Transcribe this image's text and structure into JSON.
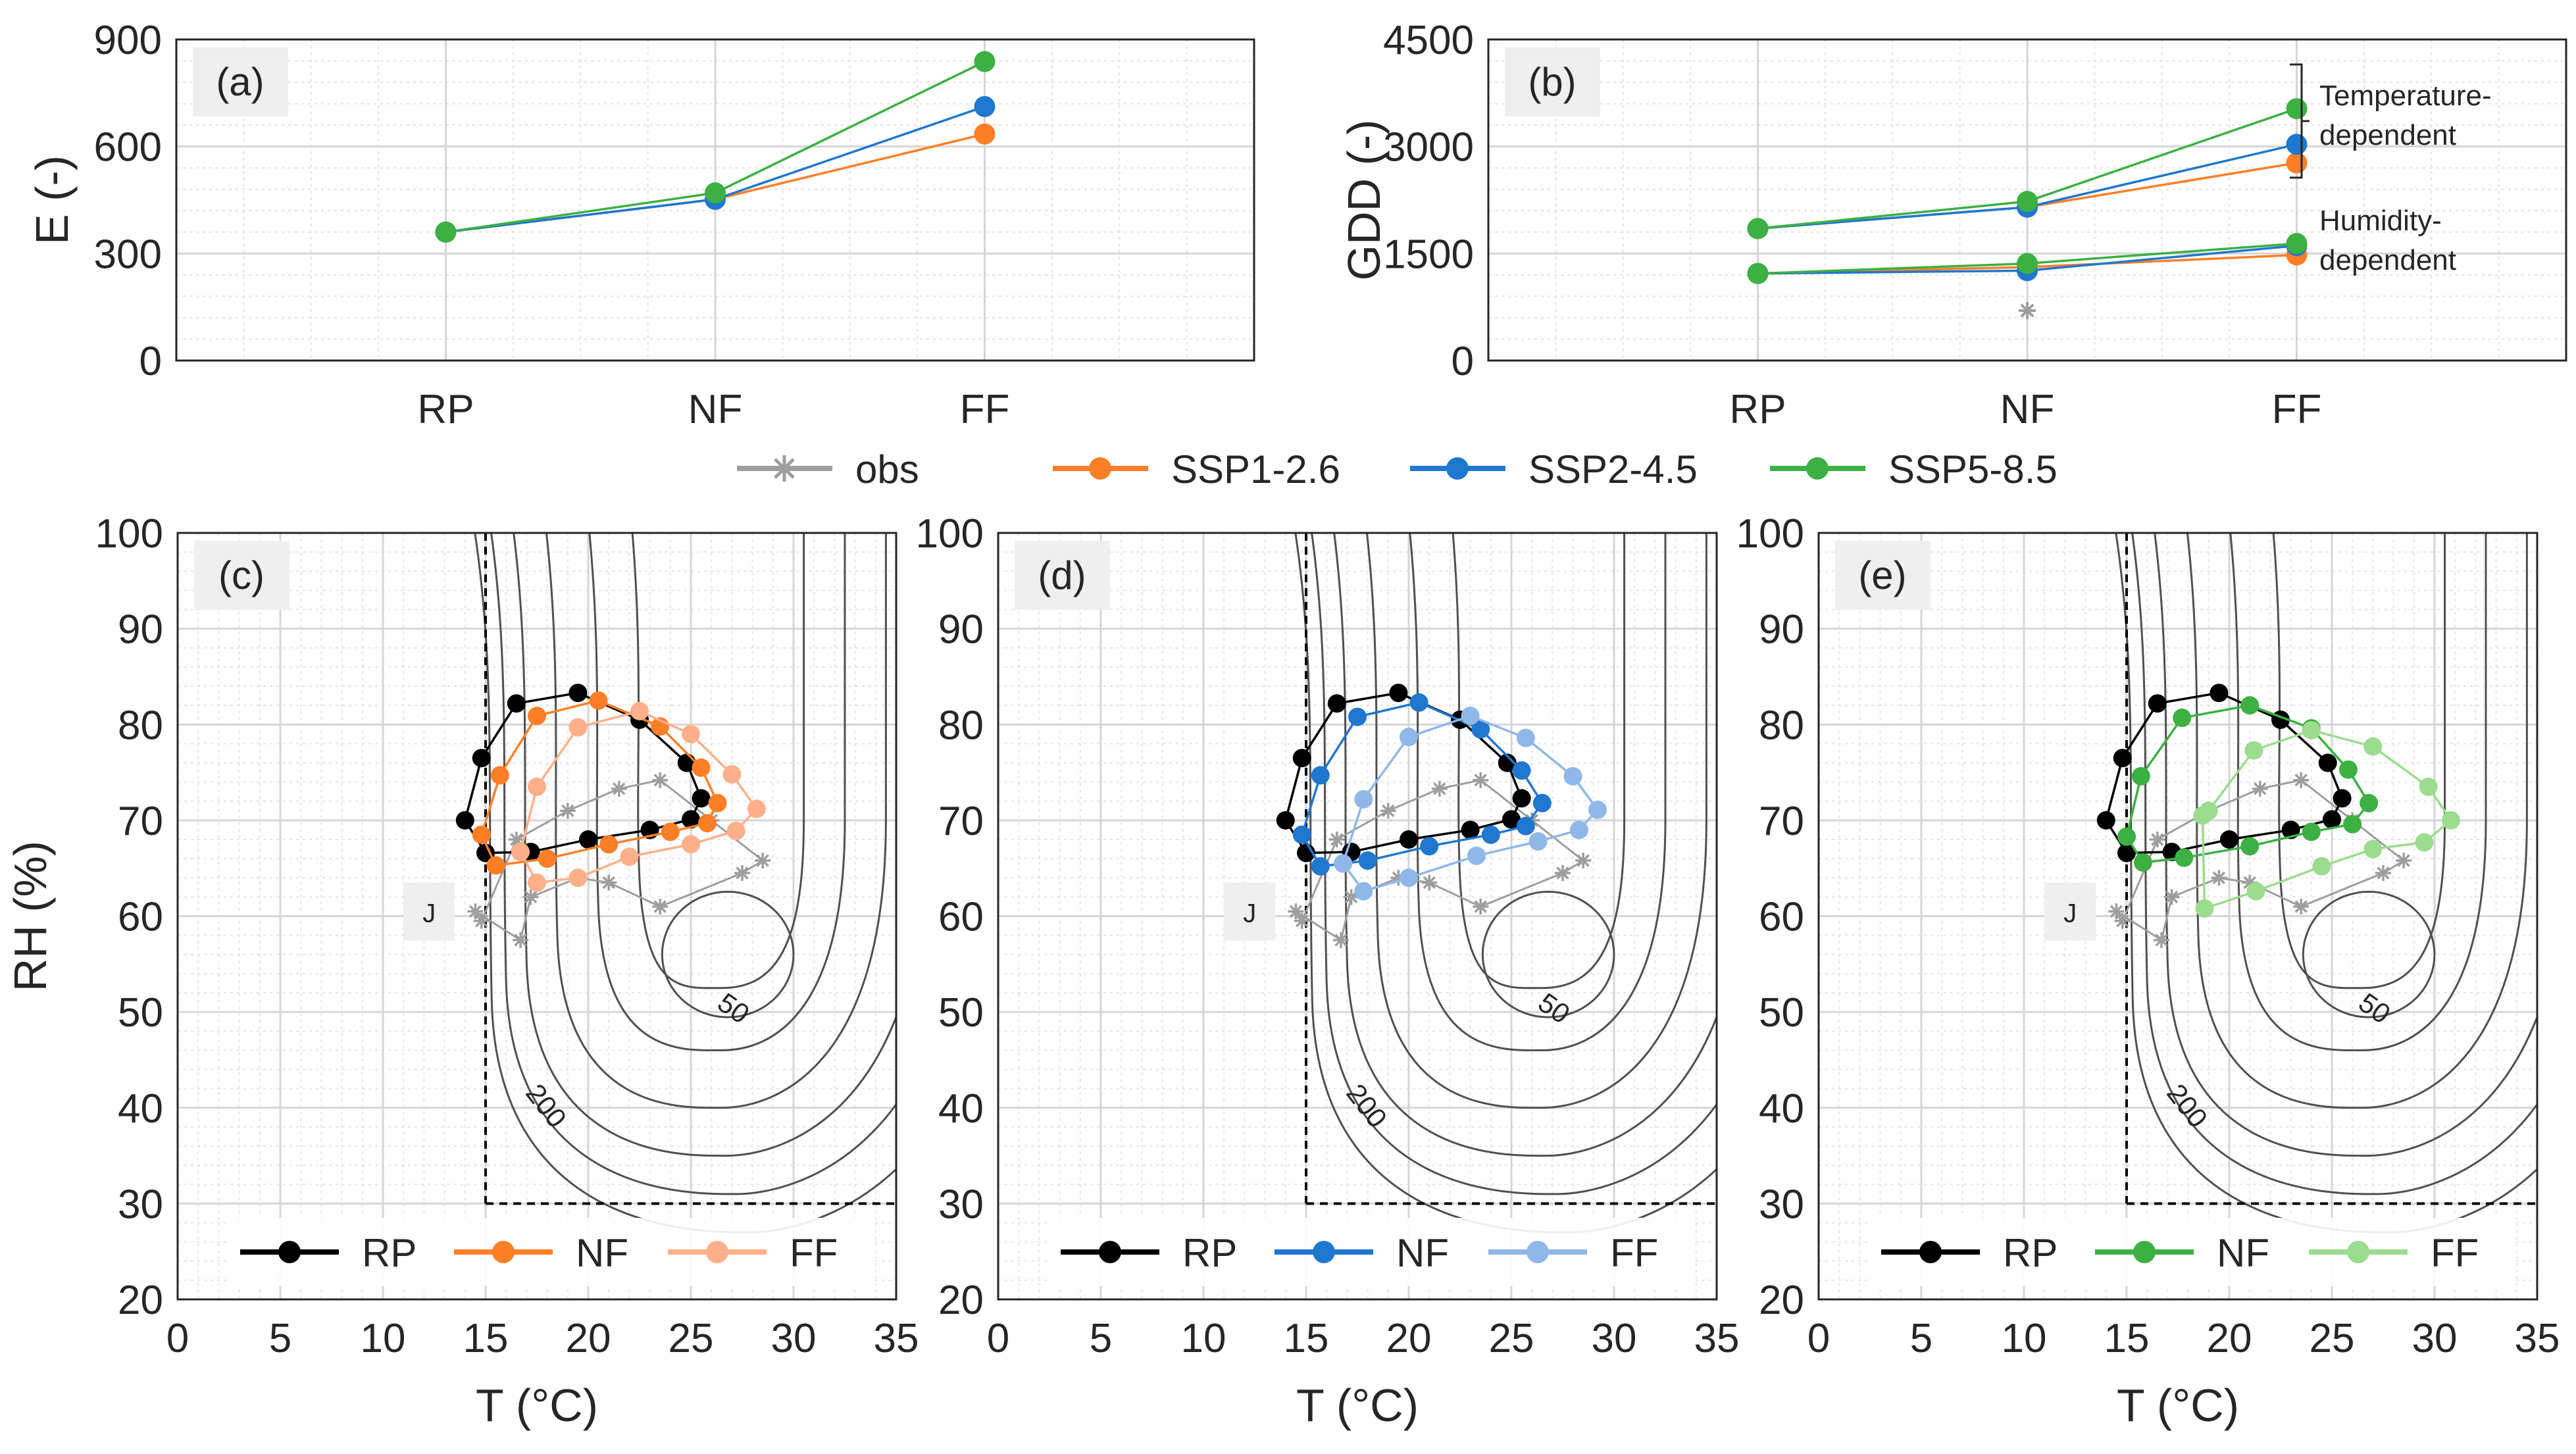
{
  "colors": {
    "obs": "#9e9e9e",
    "rp": "#000000",
    "ssp126": "#ff7f27",
    "ssp245": "#1f77d0",
    "ssp585": "#3cb043",
    "ssp126_light": "#ffb08a",
    "ssp245_light": "#8fb8e8",
    "ssp585_light": "#9bdc8f",
    "contour": "#505050",
    "grid": "#d6d6d6"
  },
  "top_legend": {
    "items": [
      {
        "label": "obs",
        "color_key": "obs",
        "marker": "star"
      },
      {
        "label": "SSP1-2.6",
        "color_key": "ssp126",
        "marker": "circle"
      },
      {
        "label": "SSP2-4.5",
        "color_key": "ssp245",
        "marker": "circle"
      },
      {
        "label": "SSP5-8.5",
        "color_key": "ssp585",
        "marker": "circle"
      }
    ]
  },
  "chart_data": [
    {
      "id": "a",
      "type": "line",
      "panel_label": "(a)",
      "ylabel": "E (-)",
      "xlabel": "",
      "categories": [
        "RP",
        "NF",
        "FF"
      ],
      "ylim": [
        0,
        900
      ],
      "yticks": [
        0,
        300,
        600,
        900
      ],
      "series": [
        {
          "name": "SSP1-2.6",
          "color_key": "ssp126",
          "values": [
            360,
            452,
            635
          ]
        },
        {
          "name": "SSP2-4.5",
          "color_key": "ssp245",
          "values": [
            360,
            452,
            712
          ]
        },
        {
          "name": "SSP5-8.5",
          "color_key": "ssp585",
          "values": [
            360,
            470,
            838
          ]
        }
      ]
    },
    {
      "id": "b",
      "type": "line",
      "panel_label": "(b)",
      "ylabel": "GDD (-)",
      "xlabel": "",
      "categories": [
        "RP",
        "NF",
        "FF"
      ],
      "ylim": [
        0,
        4500
      ],
      "yticks": [
        0,
        1500,
        3000,
        4500
      ],
      "annotations": [
        {
          "text_lines": [
            "Temperature-",
            "dependent"
          ]
        },
        {
          "text_lines": [
            "Humidity-",
            "dependent"
          ]
        }
      ],
      "obs_points": [
        {
          "x": "NF",
          "y": 700
        }
      ],
      "series": [
        {
          "name": "SSP1-2.6 (temperature-dependent)",
          "color_key": "ssp126",
          "values": [
            1850,
            2150,
            2770
          ]
        },
        {
          "name": "SSP2-4.5 (temperature-dependent)",
          "color_key": "ssp245",
          "values": [
            1850,
            2150,
            3030
          ]
        },
        {
          "name": "SSP5-8.5 (temperature-dependent)",
          "color_key": "ssp585",
          "values": [
            1850,
            2230,
            3530
          ]
        },
        {
          "name": "SSP1-2.6 (humidity-dependent)",
          "color_key": "ssp126",
          "values": [
            1220,
            1310,
            1480
          ]
        },
        {
          "name": "SSP2-4.5 (humidity-dependent)",
          "color_key": "ssp245",
          "values": [
            1220,
            1260,
            1610
          ]
        },
        {
          "name": "SSP5-8.5 (humidity-dependent)",
          "color_key": "ssp585",
          "values": [
            1220,
            1360,
            1640
          ]
        }
      ]
    },
    {
      "id": "c",
      "type": "line",
      "panel_label": "(c)",
      "ylabel": "RH (%)",
      "xlabel": "T (°C)",
      "xlim": [
        0,
        35
      ],
      "ylim": [
        20,
        100
      ],
      "xticks": [
        0,
        5,
        10,
        15,
        20,
        25,
        30,
        35
      ],
      "yticks": [
        20,
        30,
        40,
        50,
        60,
        70,
        80,
        90,
        100
      ],
      "month_label": "J",
      "contour_labels": [
        "50",
        "200"
      ],
      "threshold": {
        "t_min": 15,
        "rh_min": 30
      },
      "legend": [
        {
          "label": "RP",
          "color_key": "rp"
        },
        {
          "label": "NF",
          "color_key": "ssp126"
        },
        {
          "label": "FF",
          "color_key": "ssp126_light"
        }
      ],
      "series": [
        {
          "name": "obs",
          "color_key": "obs",
          "marker": "star",
          "points": [
            [
              14.5,
              60.5
            ],
            [
              16.7,
              57.5
            ],
            [
              17.2,
              62
            ],
            [
              19.5,
              64
            ],
            [
              21.0,
              63.5
            ],
            [
              23.5,
              61
            ],
            [
              27.5,
              64.5
            ],
            [
              28.5,
              65.8
            ],
            [
              26.0,
              70
            ],
            [
              23.5,
              74.2
            ],
            [
              21.5,
              73.3
            ],
            [
              19.0,
              71
            ],
            [
              16.5,
              68
            ],
            [
              14.8,
              59.5
            ]
          ]
        },
        {
          "name": "RP",
          "color_key": "rp",
          "marker": "circle",
          "points": [
            [
              14.0,
              70.0
            ],
            [
              14.8,
              76.5
            ],
            [
              16.5,
              82.2
            ],
            [
              19.5,
              83.3
            ],
            [
              22.5,
              80.5
            ],
            [
              24.8,
              76
            ],
            [
              25.5,
              72.3
            ],
            [
              25.0,
              70.1
            ],
            [
              23.0,
              69
            ],
            [
              20.0,
              68
            ],
            [
              17.2,
              66.7
            ],
            [
              15.0,
              66.6
            ],
            [
              14.0,
              70.0
            ]
          ]
        },
        {
          "name": "NF",
          "color_key": "ssp126",
          "marker": "circle",
          "points": [
            [
              14.8,
              68.5
            ],
            [
              15.7,
              74.7
            ],
            [
              17.5,
              80.9
            ],
            [
              20.5,
              82.5
            ],
            [
              23.5,
              79.8
            ],
            [
              25.5,
              75.5
            ],
            [
              26.3,
              71.8
            ],
            [
              25.8,
              69.7
            ],
            [
              24.0,
              68.8
            ],
            [
              21.0,
              67.5
            ],
            [
              18.0,
              66.0
            ],
            [
              15.5,
              65.3
            ],
            [
              14.8,
              68.5
            ]
          ]
        },
        {
          "name": "FF",
          "color_key": "ssp126_light",
          "marker": "circle",
          "points": [
            [
              16.7,
              66.7
            ],
            [
              17.5,
              73.5
            ],
            [
              19.5,
              79.7
            ],
            [
              22.5,
              81.4
            ],
            [
              25.0,
              79.0
            ],
            [
              27.0,
              74.8
            ],
            [
              28.2,
              71.2
            ],
            [
              27.2,
              68.9
            ],
            [
              25.0,
              67.5
            ],
            [
              22.0,
              66.2
            ],
            [
              19.5,
              64.0
            ],
            [
              17.5,
              63.5
            ],
            [
              16.7,
              66.7
            ]
          ]
        }
      ]
    },
    {
      "id": "d",
      "type": "line",
      "panel_label": "(d)",
      "ylabel": "",
      "xlabel": "T (°C)",
      "xlim": [
        0,
        35
      ],
      "ylim": [
        20,
        100
      ],
      "xticks": [
        0,
        5,
        10,
        15,
        20,
        25,
        30,
        35
      ],
      "yticks": [
        20,
        30,
        40,
        50,
        60,
        70,
        80,
        90,
        100
      ],
      "month_label": "J",
      "contour_labels": [
        "50",
        "200"
      ],
      "threshold": {
        "t_min": 15,
        "rh_min": 30
      },
      "legend": [
        {
          "label": "RP",
          "color_key": "rp"
        },
        {
          "label": "NF",
          "color_key": "ssp245"
        },
        {
          "label": "FF",
          "color_key": "ssp245_light"
        }
      ],
      "series": [
        {
          "name": "obs",
          "color_key": "obs",
          "marker": "star",
          "points": [
            [
              14.5,
              60.5
            ],
            [
              16.7,
              57.5
            ],
            [
              17.2,
              62
            ],
            [
              19.5,
              64
            ],
            [
              21.0,
              63.5
            ],
            [
              23.5,
              61
            ],
            [
              27.5,
              64.5
            ],
            [
              28.5,
              65.8
            ],
            [
              26.0,
              70
            ],
            [
              23.5,
              74.2
            ],
            [
              21.5,
              73.3
            ],
            [
              19.0,
              71
            ],
            [
              16.5,
              68
            ],
            [
              14.8,
              59.5
            ]
          ]
        },
        {
          "name": "RP",
          "color_key": "rp",
          "marker": "circle",
          "points": [
            [
              14.0,
              70.0
            ],
            [
              14.8,
              76.5
            ],
            [
              16.5,
              82.2
            ],
            [
              19.5,
              83.3
            ],
            [
              22.5,
              80.5
            ],
            [
              24.8,
              76
            ],
            [
              25.5,
              72.3
            ],
            [
              25.0,
              70.1
            ],
            [
              23.0,
              69
            ],
            [
              20.0,
              68
            ],
            [
              17.2,
              66.7
            ],
            [
              15.0,
              66.6
            ],
            [
              14.0,
              70.0
            ]
          ]
        },
        {
          "name": "NF",
          "color_key": "ssp245",
          "marker": "circle",
          "points": [
            [
              14.8,
              68.5
            ],
            [
              15.7,
              74.7
            ],
            [
              17.5,
              80.8
            ],
            [
              20.5,
              82.3
            ],
            [
              23.5,
              79.5
            ],
            [
              25.5,
              75.2
            ],
            [
              26.5,
              71.8
            ],
            [
              25.7,
              69.4
            ],
            [
              24.0,
              68.5
            ],
            [
              21.0,
              67.3
            ],
            [
              18.0,
              65.8
            ],
            [
              15.7,
              65.2
            ],
            [
              14.8,
              68.5
            ]
          ]
        },
        {
          "name": "FF",
          "color_key": "ssp245_light",
          "marker": "circle",
          "points": [
            [
              16.8,
              65.5
            ],
            [
              17.8,
              72.2
            ],
            [
              20.0,
              78.7
            ],
            [
              23.0,
              80.9
            ],
            [
              25.7,
              78.6
            ],
            [
              28.0,
              74.6
            ],
            [
              29.2,
              71.1
            ],
            [
              28.3,
              69.0
            ],
            [
              26.3,
              67.8
            ],
            [
              23.3,
              66.3
            ],
            [
              20.0,
              64.0
            ],
            [
              17.8,
              62.6
            ],
            [
              16.8,
              65.5
            ]
          ]
        }
      ]
    },
    {
      "id": "e",
      "type": "line",
      "panel_label": "(e)",
      "ylabel": "",
      "xlabel": "T (°C)",
      "xlim": [
        0,
        35
      ],
      "ylim": [
        20,
        100
      ],
      "xticks": [
        0,
        5,
        10,
        15,
        20,
        25,
        30,
        35
      ],
      "yticks": [
        20,
        30,
        40,
        50,
        60,
        70,
        80,
        90,
        100
      ],
      "month_label": "J",
      "contour_labels": [
        "50",
        "200"
      ],
      "threshold": {
        "t_min": 15,
        "rh_min": 30
      },
      "legend": [
        {
          "label": "RP",
          "color_key": "rp"
        },
        {
          "label": "NF",
          "color_key": "ssp585"
        },
        {
          "label": "FF",
          "color_key": "ssp585_light"
        }
      ],
      "series": [
        {
          "name": "obs",
          "color_key": "obs",
          "marker": "star",
          "points": [
            [
              14.5,
              60.5
            ],
            [
              16.7,
              57.5
            ],
            [
              17.2,
              62
            ],
            [
              19.5,
              64
            ],
            [
              21.0,
              63.5
            ],
            [
              23.5,
              61
            ],
            [
              27.5,
              64.5
            ],
            [
              28.5,
              65.8
            ],
            [
              26.0,
              70
            ],
            [
              23.5,
              74.2
            ],
            [
              21.5,
              73.3
            ],
            [
              19.0,
              71
            ],
            [
              16.5,
              68
            ],
            [
              14.8,
              59.5
            ]
          ]
        },
        {
          "name": "RP",
          "color_key": "rp",
          "marker": "circle",
          "points": [
            [
              14.0,
              70.0
            ],
            [
              14.8,
              76.5
            ],
            [
              16.5,
              82.2
            ],
            [
              19.5,
              83.3
            ],
            [
              22.5,
              80.5
            ],
            [
              24.8,
              76
            ],
            [
              25.5,
              72.3
            ],
            [
              25.0,
              70.1
            ],
            [
              23.0,
              69
            ],
            [
              20.0,
              68
            ],
            [
              17.2,
              66.7
            ],
            [
              15.0,
              66.6
            ],
            [
              14.0,
              70.0
            ]
          ]
        },
        {
          "name": "NF",
          "color_key": "ssp585",
          "marker": "circle",
          "points": [
            [
              15.0,
              68.3
            ],
            [
              15.7,
              74.6
            ],
            [
              17.7,
              80.7
            ],
            [
              21.0,
              82.0
            ],
            [
              24.0,
              79.6
            ],
            [
              25.8,
              75.3
            ],
            [
              26.8,
              71.8
            ],
            [
              26.0,
              69.6
            ],
            [
              24.0,
              68.8
            ],
            [
              21.0,
              67.3
            ],
            [
              17.8,
              66.1
            ],
            [
              15.8,
              65.6
            ],
            [
              15.0,
              68.3
            ]
          ]
        },
        {
          "name": "FF",
          "color_key": "ssp585_light",
          "marker": "circle",
          "points": [
            [
              18.7,
              70.5
            ],
            [
              19.0,
              71.0
            ],
            [
              21.2,
              77.3
            ],
            [
              24.0,
              79.4
            ],
            [
              27.0,
              77.7
            ],
            [
              29.7,
              73.5
            ],
            [
              30.8,
              70.0
            ],
            [
              29.5,
              67.7
            ],
            [
              27.0,
              67.0
            ],
            [
              24.5,
              65.2
            ],
            [
              21.3,
              62.6
            ],
            [
              18.8,
              60.8
            ],
            [
              18.7,
              70.5
            ]
          ]
        }
      ]
    }
  ]
}
